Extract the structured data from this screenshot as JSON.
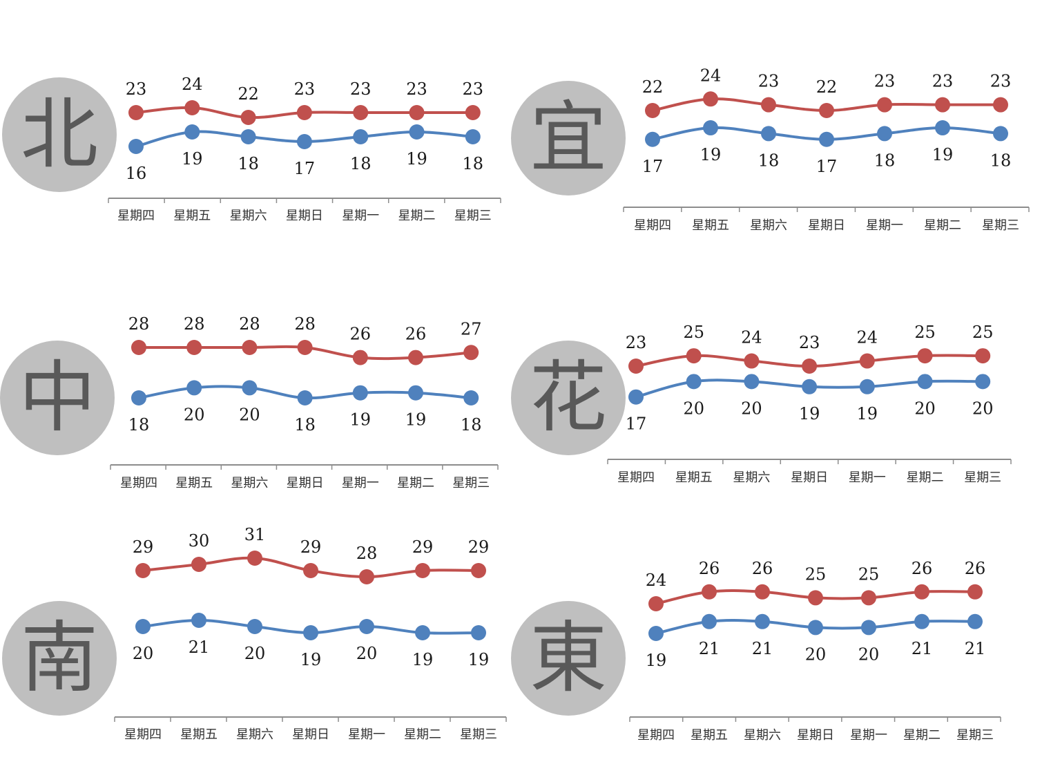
{
  "colors": {
    "high": "#C0504D",
    "low": "#4F81BD",
    "axis": "#8c8c8c",
    "badge": "#bfbfbf",
    "badge_text": "#595959"
  },
  "chart_data": [
    {
      "type": "line",
      "region": "北",
      "categories": [
        "星期四",
        "星期五",
        "星期六",
        "星期日",
        "星期一",
        "星期二",
        "星期三"
      ],
      "series": [
        {
          "values": [
            23,
            24,
            22,
            23,
            23,
            23,
            23
          ]
        },
        {
          "values": [
            16,
            19,
            18,
            17,
            18,
            19,
            18
          ]
        }
      ]
    },
    {
      "type": "line",
      "region": "宜",
      "categories": [
        "星期四",
        "星期五",
        "星期六",
        "星期日",
        "星期一",
        "星期二",
        "星期三"
      ],
      "series": [
        {
          "values": [
            22,
            24,
            23,
            22,
            23,
            23,
            23
          ]
        },
        {
          "values": [
            17,
            19,
            18,
            17,
            18,
            19,
            18
          ]
        }
      ]
    },
    {
      "type": "line",
      "region": "中",
      "categories": [
        "星期四",
        "星期五",
        "星期六",
        "星期日",
        "星期一",
        "星期二",
        "星期三"
      ],
      "series": [
        {
          "values": [
            28,
            28,
            28,
            28,
            26,
            26,
            27
          ]
        },
        {
          "values": [
            18,
            20,
            20,
            18,
            19,
            19,
            18
          ]
        }
      ]
    },
    {
      "type": "line",
      "region": "花",
      "categories": [
        "星期四",
        "星期五",
        "星期六",
        "星期日",
        "星期一",
        "星期二",
        "星期三"
      ],
      "series": [
        {
          "values": [
            23,
            25,
            24,
            23,
            24,
            25,
            25
          ]
        },
        {
          "values": [
            17,
            20,
            20,
            19,
            19,
            20,
            20
          ]
        }
      ]
    },
    {
      "type": "line",
      "region": "南",
      "categories": [
        "星期四",
        "星期五",
        "星期六",
        "星期日",
        "星期一",
        "星期二",
        "星期三"
      ],
      "series": [
        {
          "values": [
            29,
            30,
            31,
            29,
            28,
            29,
            29
          ]
        },
        {
          "values": [
            20,
            21,
            20,
            19,
            20,
            19,
            19
          ]
        }
      ]
    },
    {
      "type": "line",
      "region": "東",
      "categories": [
        "星期四",
        "星期五",
        "星期六",
        "星期日",
        "星期一",
        "星期二",
        "星期三"
      ],
      "series": [
        {
          "values": [
            24,
            26,
            26,
            25,
            25,
            26,
            26
          ]
        },
        {
          "values": [
            19,
            21,
            21,
            20,
            20,
            21,
            21
          ]
        }
      ]
    }
  ]
}
